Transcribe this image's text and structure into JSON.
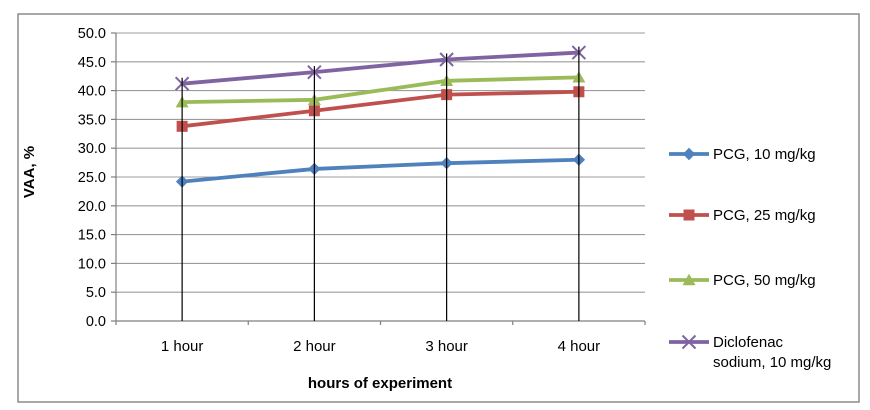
{
  "figure": {
    "background": "#FFFFFF",
    "border_color": "#8B8B8B",
    "gridline_color": "#9C9C9C",
    "axis_color": "#7F7F7F",
    "drop_line_color": "#000000",
    "text_color": "#000000"
  },
  "chart_data": {
    "type": "line",
    "title": "",
    "xlabel": "hours of experiment",
    "ylabel": "VAA, %",
    "categories": [
      "1 hour",
      "2 hour",
      "3 hour",
      "4 hour"
    ],
    "yticks": [
      "0.0",
      "5.0",
      "10.0",
      "15.0",
      "20.0",
      "25.0",
      "30.0",
      "35.0",
      "40.0",
      "45.0",
      "50.0"
    ],
    "ylim": [
      0,
      50
    ],
    "ytick_step": 5,
    "grid": true,
    "drop_lines": true,
    "legend_position": "right",
    "series": [
      {
        "name": "PCG, 10 mg/kg",
        "label_lines": [
          "PCG, 10 mg/kg"
        ],
        "values": [
          24.2,
          26.4,
          27.4,
          28.0
        ],
        "color": "#4F81BD",
        "marker": "diamond"
      },
      {
        "name": "PCG, 25 mg/kg",
        "label_lines": [
          "PCG, 25 mg/kg"
        ],
        "values": [
          33.8,
          36.5,
          39.3,
          39.8
        ],
        "color": "#C0504D",
        "marker": "square"
      },
      {
        "name": "PCG, 50 mg/kg",
        "label_lines": [
          "PCG, 50 mg/kg"
        ],
        "values": [
          38.0,
          38.4,
          41.7,
          42.3
        ],
        "color": "#9BBB59",
        "marker": "triangle"
      },
      {
        "name": "Diclofenac sodium, 10 mg/kg",
        "label_lines": [
          "Diclofenac",
          "sodium, 10 mg/kg"
        ],
        "values": [
          41.2,
          43.2,
          45.4,
          46.6
        ],
        "color": "#8064A2",
        "marker": "x"
      }
    ]
  }
}
